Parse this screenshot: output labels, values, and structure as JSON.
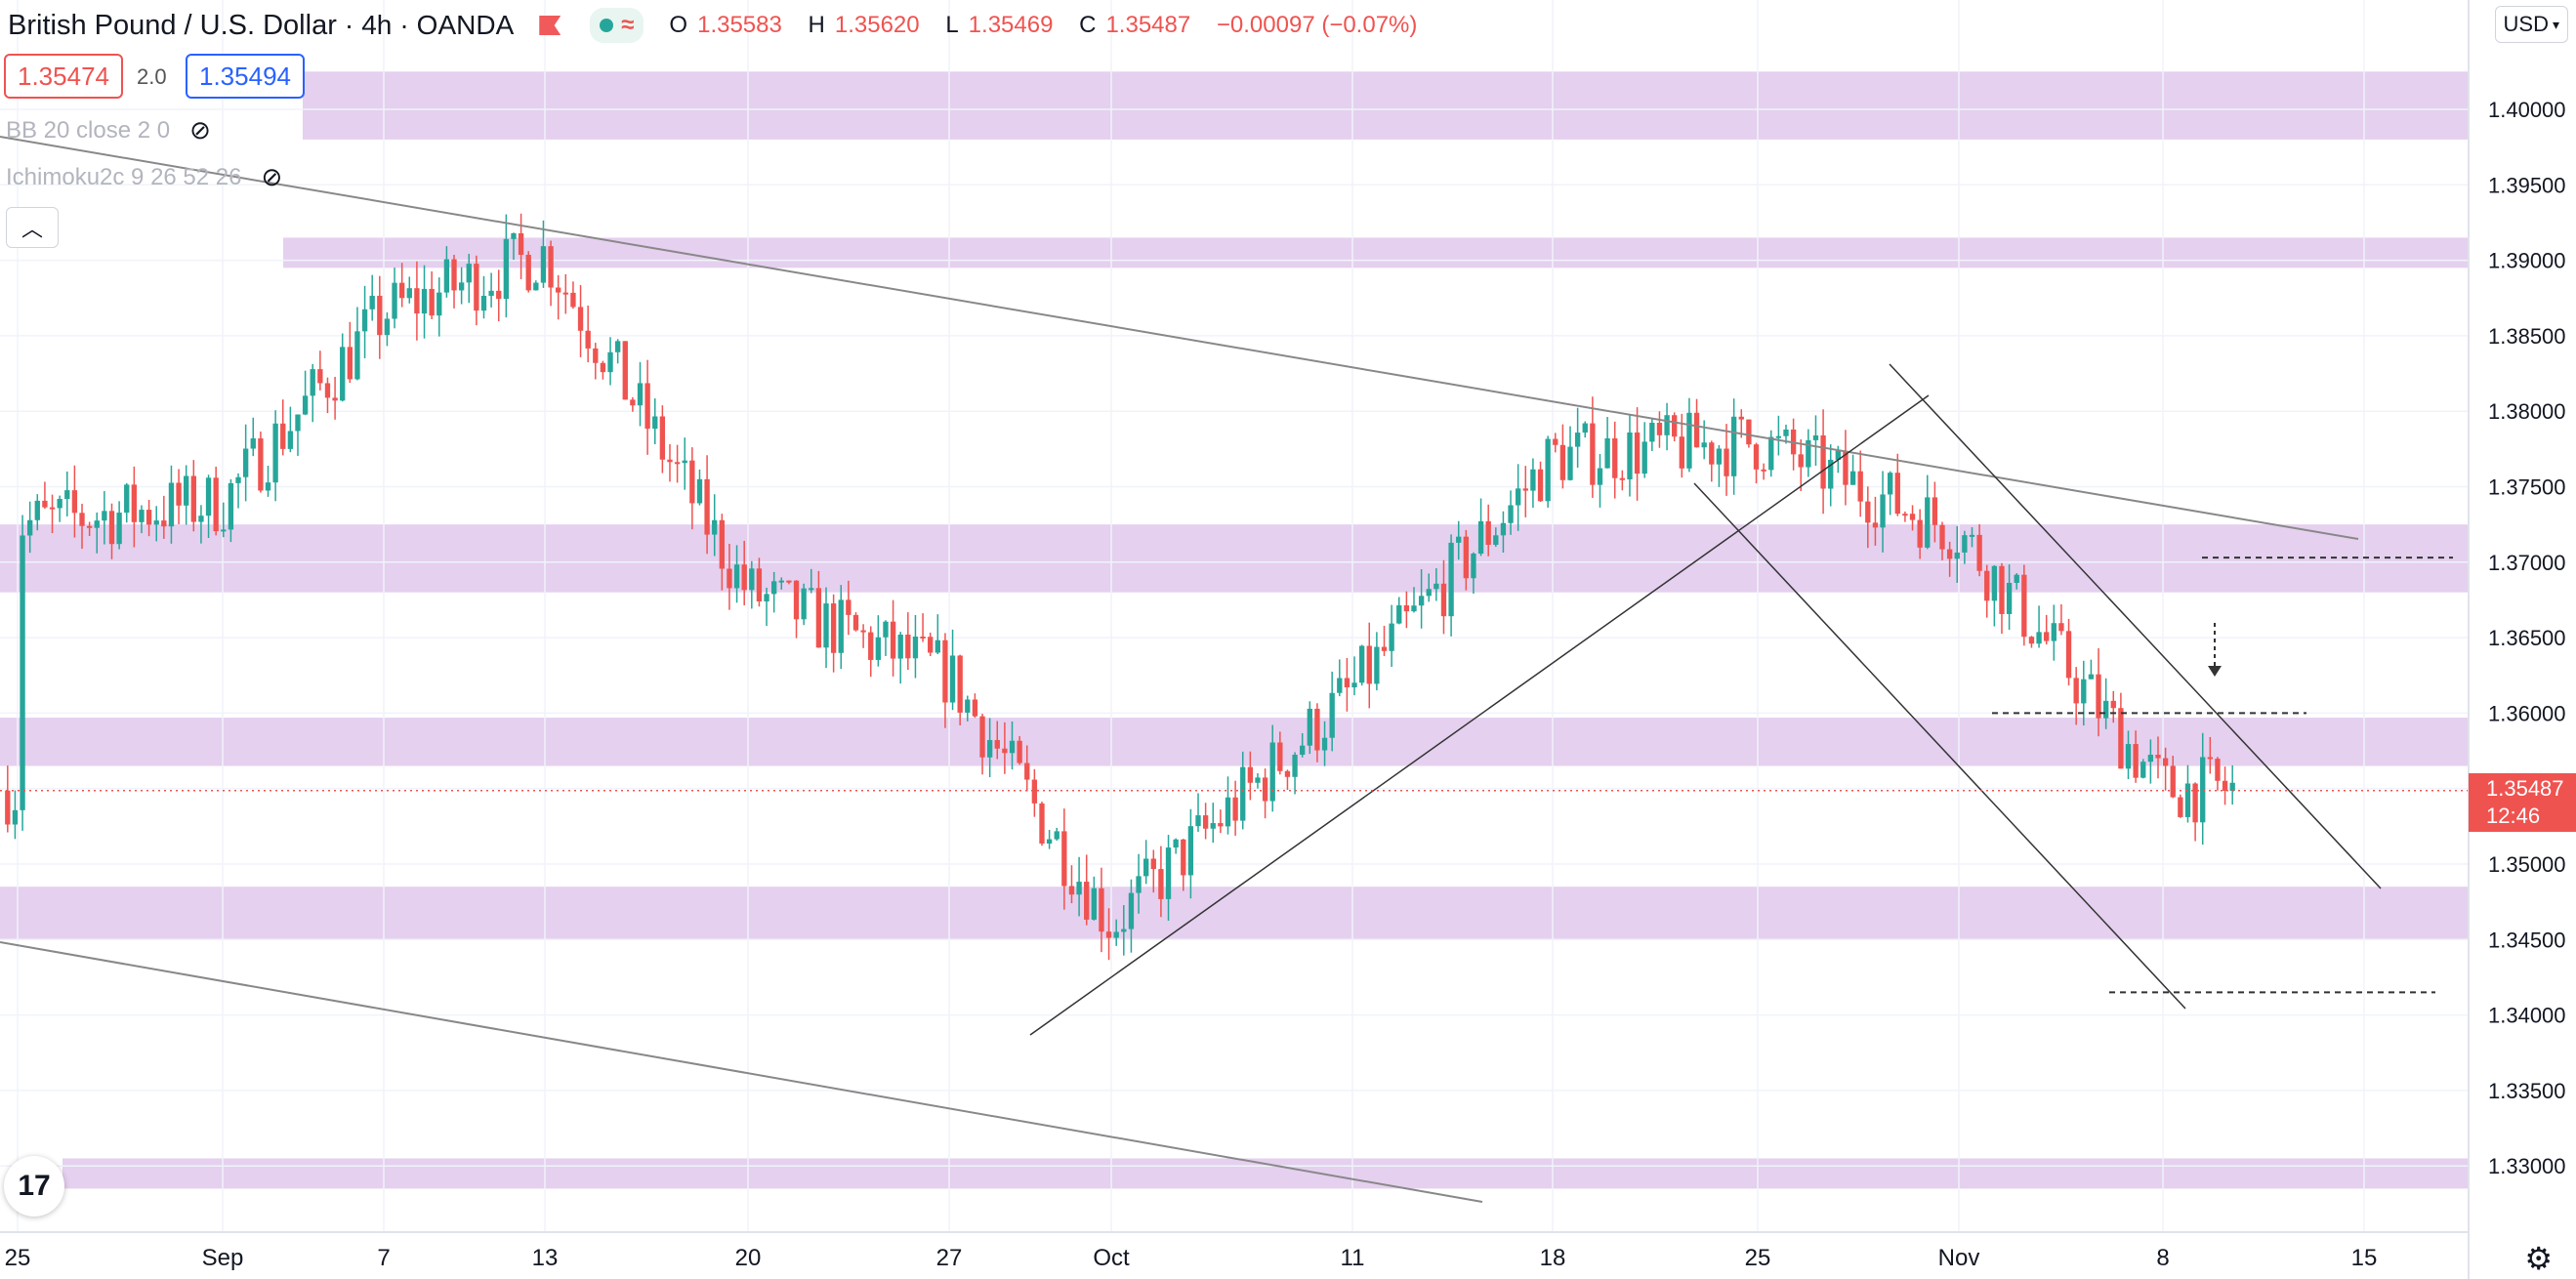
{
  "header": {
    "symbol": "British Pound / U.S. Dollar",
    "interval": "4h",
    "broker": "OANDA",
    "ohlc": {
      "o_label": "O",
      "o": "1.35583",
      "h_label": "H",
      "h": "1.35620",
      "l_label": "L",
      "l": "1.35469",
      "c_label": "C",
      "c": "1.35487",
      "change": "−0.00097 (−0.07%)"
    },
    "colors": {
      "down": "#ef5350",
      "up": "#26a69a"
    }
  },
  "quote": {
    "bid": "1.35474",
    "spread": "2.0",
    "ask": "1.35494"
  },
  "indicators": [
    {
      "label": "BB 20 close 2 0",
      "icon": "eye-hidden-icon"
    },
    {
      "label": "Ichimoku2c 9 26 52 26",
      "icon": "eye-hidden-icon"
    }
  ],
  "currency_button": "USD",
  "price_axis": {
    "ticks": [
      "1.40000",
      "1.39500",
      "1.39000",
      "1.38500",
      "1.38000",
      "1.37500",
      "1.37000",
      "1.36500",
      "1.36000",
      "1.35500",
      "1.35000",
      "1.34500",
      "1.34000",
      "1.33500",
      "1.33000"
    ],
    "last_price": "1.35487",
    "countdown": "12:46"
  },
  "time_axis": {
    "labels": [
      "25",
      "Sep",
      "7",
      "13",
      "20",
      "27",
      "Oct",
      "11",
      "18",
      "25",
      "Nov",
      "8",
      "15"
    ]
  },
  "chart_data": {
    "type": "candlestick",
    "instrument": "GBP/USD",
    "interval": "4h",
    "ylim": [
      1.328,
      1.4075
    ],
    "x": [
      "25",
      "Sep",
      "7",
      "13",
      "20",
      "27",
      "Oct",
      "11",
      "18",
      "25",
      "Nov",
      "8",
      "15"
    ],
    "anchors": [
      {
        "x": "25",
        "y": 1.3725
      },
      {
        "x": "Sep",
        "y": 1.374
      },
      {
        "x": "7",
        "y": 1.3865
      },
      {
        "x": "13",
        "y": 1.3905
      },
      {
        "x": "20",
        "y": 1.368
      },
      {
        "x": "27",
        "y": 1.3625
      },
      {
        "x": "Oct",
        "y": 1.346
      },
      {
        "x": "11",
        "y": 1.3615
      },
      {
        "x": "18",
        "y": 1.377
      },
      {
        "x": "25",
        "y": 1.378
      },
      {
        "x": "Nov",
        "y": 1.372
      },
      {
        "x": "8",
        "y": 1.355
      },
      {
        "x": "15",
        "y": 1.3549
      }
    ],
    "last": 1.35487,
    "zones": [
      [
        1.398,
        1.4025
      ],
      [
        1.3895,
        1.3915
      ],
      [
        1.368,
        1.3725
      ],
      [
        1.3565,
        1.3597
      ],
      [
        1.345,
        1.3485
      ],
      [
        1.3285,
        1.3305
      ]
    ],
    "levels": [
      1.3703,
      1.36,
      1.3415
    ],
    "colors": {
      "zone": "#e1c8ec",
      "trend": "#888888"
    }
  }
}
